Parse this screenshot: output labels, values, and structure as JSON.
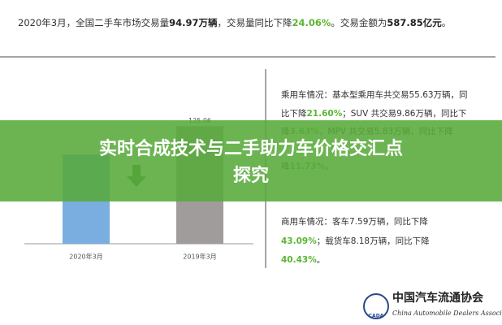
{
  "header": [
    {
      "text": "2020年3月，全国二手车市场交易量",
      "style": "normal"
    },
    {
      "text": "94.97万辆",
      "style": "bold"
    },
    {
      "text": "，交易量同比下降",
      "style": "normal"
    },
    {
      "text": "24.06%",
      "style": "green"
    },
    {
      "text": "。交易金额为",
      "style": "normal"
    },
    {
      "text": "587.85亿元",
      "style": "bold"
    },
    {
      "text": "。",
      "style": "normal"
    }
  ],
  "chart_data": {
    "type": "bar",
    "categories": [
      "2020年3月",
      "2019年3月"
    ],
    "values": [
      94.97,
      125.06
    ],
    "value_labels": [
      null,
      "125.06"
    ],
    "colors": [
      "#7aaee0",
      "#a09c9c"
    ],
    "ylim": [
      0,
      140
    ]
  },
  "side": [
    [
      {
        "text": "乘用车情况：基本型乘用车共交易55.63万辆，同",
        "style": "normal"
      }
    ],
    [
      {
        "text": "比下降",
        "style": "normal"
      },
      {
        "text": "21.60%",
        "style": "green"
      },
      {
        "text": "；SUV 共交易9.86万辆，同比下",
        "style": "normal"
      }
    ],
    [
      {
        "text": "降",
        "style": "normal"
      },
      {
        "text": "3.63%",
        "style": "green"
      },
      {
        "text": "，MPV 共交易5.83万辆，同比下降",
        "style": "normal"
      }
    ],
    [
      {
        "text": "降",
        "style": "normal"
      },
      {
        "text": "11.73%",
        "style": "green"
      },
      {
        "text": "。",
        "style": "normal"
      }
    ],
    [
      {
        "text": "商用车情况：客车7.59万辆，同比下降",
        "style": "normal"
      }
    ],
    [
      {
        "text": "43.09%",
        "style": "green"
      },
      {
        "text": "；载货车8.18万辆，同比下降",
        "style": "normal"
      }
    ],
    [
      {
        "text": "40.43%",
        "style": "green"
      },
      {
        "text": "。",
        "style": "normal"
      }
    ]
  ],
  "banner": {
    "line1": "实时合成技术与二手助力车价格交汇点",
    "line2": "探究"
  },
  "logo": {
    "abbr": "CADA",
    "name": "中国汽车流通协会",
    "english": "China Automobile Dealers Association"
  }
}
